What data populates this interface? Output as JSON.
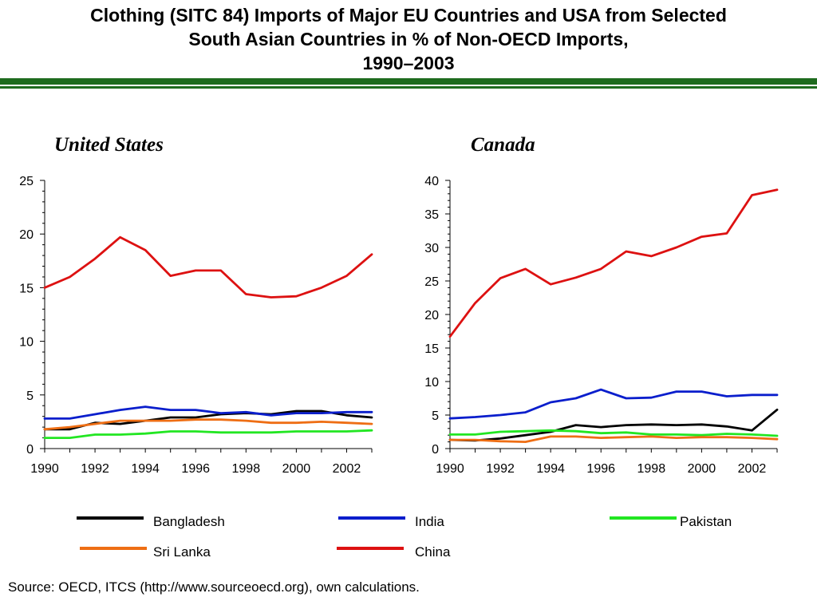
{
  "title": {
    "line1": "Clothing (SITC 84) Imports of Major EU Countries and USA from Selected",
    "line2": "South Asian Countries in % of Non-OECD Imports,",
    "line3": "1990–2003"
  },
  "source": "Source: OECD, ITCS (http://www.sourceoecd.org), own calculations.",
  "colors": {
    "Bangladesh": "#000000",
    "India": "#0a1ecc",
    "Pakistan": "#22e622",
    "Sri Lanka": "#ee6e14",
    "China": "#dd1111",
    "rule": "#1e6b1e"
  },
  "legend": [
    {
      "name": "Bangladesh",
      "color": "#000000"
    },
    {
      "name": "India",
      "color": "#0a1ecc"
    },
    {
      "name": "Pakistan",
      "color": "#22e622"
    },
    {
      "name": "Sri Lanka",
      "color": "#ee6e14"
    },
    {
      "name": "China",
      "color": "#dd1111"
    }
  ],
  "chart_data": [
    {
      "type": "line",
      "title": "United States",
      "x": [
        1990,
        1991,
        1992,
        1993,
        1994,
        1995,
        1996,
        1997,
        1998,
        1999,
        2000,
        2001,
        2002,
        2003
      ],
      "xticks": [
        "1990",
        "1992",
        "1994",
        "1996",
        "1998",
        "2000",
        "2002"
      ],
      "ylim": [
        0,
        25
      ],
      "yticks": [
        "0",
        "5",
        "10",
        "15",
        "20",
        "25"
      ],
      "series": [
        {
          "name": "Bangladesh",
          "values": [
            1.8,
            1.8,
            2.4,
            2.3,
            2.6,
            2.9,
            2.9,
            3.2,
            3.3,
            3.2,
            3.5,
            3.5,
            3.1,
            2.9
          ]
        },
        {
          "name": "India",
          "values": [
            2.8,
            2.8,
            3.2,
            3.6,
            3.9,
            3.6,
            3.6,
            3.3,
            3.4,
            3.1,
            3.3,
            3.3,
            3.4,
            3.4
          ]
        },
        {
          "name": "Pakistan",
          "values": [
            1.0,
            1.0,
            1.3,
            1.3,
            1.4,
            1.6,
            1.6,
            1.5,
            1.5,
            1.5,
            1.6,
            1.6,
            1.6,
            1.7
          ]
        },
        {
          "name": "Sri Lanka",
          "values": [
            1.8,
            2.0,
            2.3,
            2.6,
            2.6,
            2.6,
            2.7,
            2.7,
            2.6,
            2.4,
            2.4,
            2.5,
            2.4,
            2.3
          ]
        },
        {
          "name": "China",
          "values": [
            15.0,
            16.0,
            17.7,
            19.7,
            18.5,
            16.1,
            16.6,
            16.6,
            14.4,
            14.1,
            14.2,
            15.0,
            16.1,
            18.1
          ]
        }
      ]
    },
    {
      "type": "line",
      "title": "Canada",
      "x": [
        1990,
        1991,
        1992,
        1993,
        1994,
        1995,
        1996,
        1997,
        1998,
        1999,
        2000,
        2001,
        2002,
        2003
      ],
      "xticks": [
        "1990",
        "1992",
        "1994",
        "1996",
        "1998",
        "2000",
        "2002"
      ],
      "ylim": [
        0,
        40
      ],
      "yticks": [
        "0",
        "5",
        "10",
        "15",
        "20",
        "25",
        "30",
        "35",
        "40"
      ],
      "series": [
        {
          "name": "Bangladesh",
          "values": [
            1.3,
            1.2,
            1.5,
            2.0,
            2.5,
            3.5,
            3.2,
            3.5,
            3.6,
            3.5,
            3.6,
            3.3,
            2.7,
            5.8
          ]
        },
        {
          "name": "India",
          "values": [
            4.5,
            4.7,
            5.0,
            5.4,
            6.9,
            7.5,
            8.8,
            7.5,
            7.6,
            8.5,
            8.5,
            7.8,
            8.0,
            8.0
          ]
        },
        {
          "name": "Pakistan",
          "values": [
            2.1,
            2.1,
            2.5,
            2.6,
            2.7,
            2.6,
            2.3,
            2.4,
            2.1,
            2.1,
            2.0,
            2.2,
            2.1,
            1.9
          ]
        },
        {
          "name": "Sri Lanka",
          "values": [
            1.3,
            1.3,
            1.1,
            1.0,
            1.8,
            1.8,
            1.6,
            1.7,
            1.8,
            1.6,
            1.7,
            1.7,
            1.6,
            1.4
          ]
        },
        {
          "name": "China",
          "values": [
            16.7,
            21.7,
            25.4,
            26.8,
            24.5,
            25.5,
            26.8,
            29.4,
            28.7,
            30.0,
            31.6,
            32.1,
            37.8,
            38.6
          ]
        }
      ]
    }
  ]
}
